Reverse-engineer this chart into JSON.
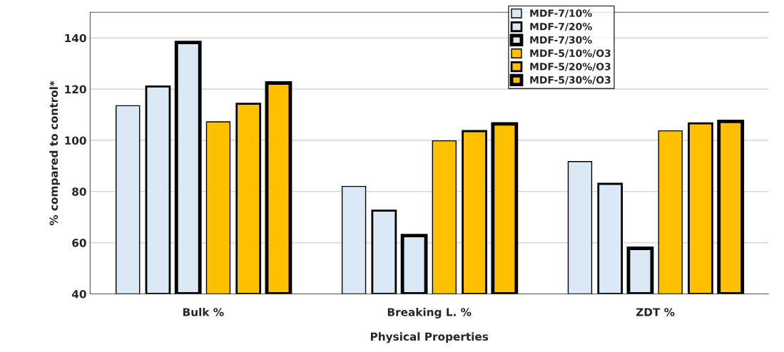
{
  "chart_data": {
    "type": "bar",
    "xlabel": "Physical Properties",
    "ylabel": "% compared to control*",
    "categories": [
      "Bulk %",
      "Breaking L. %",
      "ZDT %"
    ],
    "series": [
      {
        "name": "MDF-7/10%",
        "color": "#dbe8f6",
        "values": [
          113.5,
          82,
          91.7
        ]
      },
      {
        "name": "MDF-7/20%",
        "color": "#dbe8f6",
        "values": [
          121,
          72.5,
          83
        ]
      },
      {
        "name": "MDF-7/30%",
        "color": "#dbe8f6",
        "values": [
          138.2,
          62.8,
          57.8
        ]
      },
      {
        "name": "MDF-5/10%/O3",
        "color": "#ffc000",
        "values": [
          107.2,
          99.8,
          103.7
        ]
      },
      {
        "name": "MDF-5/20%/O3",
        "color": "#ffc000",
        "values": [
          114.3,
          103.6,
          106.6
        ]
      },
      {
        "name": "MDF-5/30%/O3",
        "color": "#ffc000",
        "values": [
          122.4,
          106.4,
          107.4
        ]
      }
    ],
    "ylim": [
      40,
      150
    ],
    "yticks": [
      40,
      60,
      80,
      100,
      120,
      140
    ],
    "grid": "y",
    "legend": "top right"
  }
}
